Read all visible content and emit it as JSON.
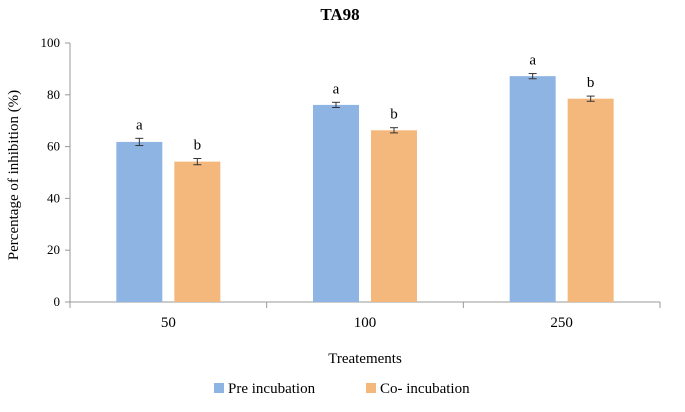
{
  "chart_data": {
    "type": "bar",
    "title": "TA98",
    "xlabel": "Treatements",
    "ylabel": "Percentage of inhibition (%)",
    "ylim": [
      0,
      100
    ],
    "yticks": [
      0,
      20,
      40,
      60,
      80,
      100
    ],
    "categories": [
      "50",
      "100",
      "250"
    ],
    "series": [
      {
        "name": "Pre incubation",
        "color": "#8eb4e3",
        "values": [
          61.8,
          76.1,
          87.2
        ],
        "errors": [
          1.4,
          1.0,
          1.0
        ],
        "labels": [
          "a",
          "a",
          "a"
        ]
      },
      {
        "name": "Co- incubation",
        "color": "#f5b87c",
        "values": [
          54.2,
          66.3,
          78.5
        ],
        "errors": [
          1.2,
          1.0,
          1.0
        ],
        "labels": [
          "b",
          "b",
          "b"
        ]
      }
    ],
    "legend_position": "bottom"
  }
}
